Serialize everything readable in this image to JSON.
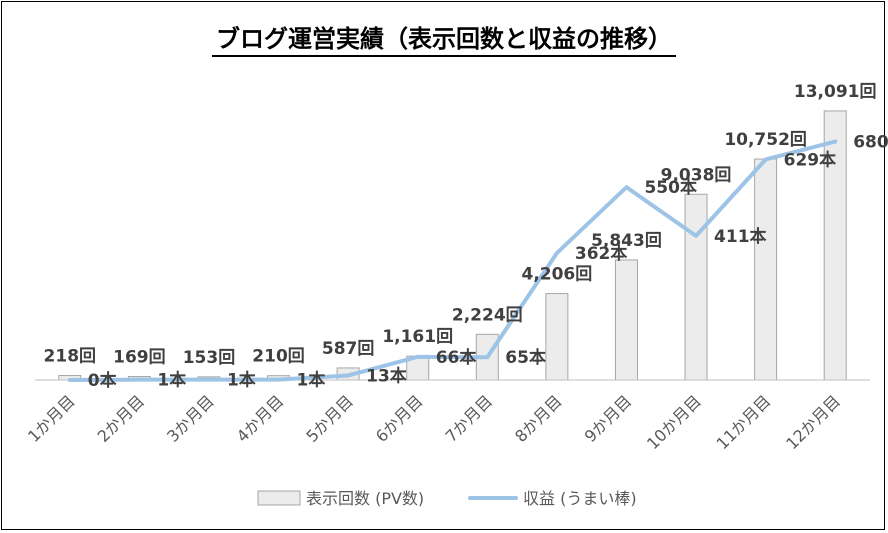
{
  "chart_data": {
    "type": "bar",
    "title": "ブログ運営実績（表示回数と収益の推移）",
    "categories": [
      "1か月目",
      "2か月目",
      "3か月目",
      "4か月目",
      "5か月目",
      "6か月目",
      "7か月目",
      "8か月目",
      "9か月目",
      "10か月目",
      "11か月目",
      "12か月目"
    ],
    "series": [
      {
        "name": "表示回数 (PV数)",
        "kind": "bar",
        "values": [
          218,
          169,
          153,
          210,
          587,
          1161,
          2224,
          4206,
          5843,
          9038,
          10752,
          13091
        ],
        "labels": [
          "218回",
          "169回",
          "153回",
          "210回",
          "587回",
          "1,161回",
          "2,224回",
          "4,206回",
          "5,843回",
          "9,038回",
          "10,752回",
          "13,091回"
        ],
        "color": "#ececec",
        "edge": "#a6a6a6"
      },
      {
        "name": "収益 (うまい棒)",
        "kind": "line",
        "values": [
          0,
          1,
          1,
          1,
          13,
          66,
          65,
          362,
          550,
          411,
          629,
          680
        ],
        "labels": [
          "0本",
          "1本",
          "1本",
          "1本",
          "13本",
          "66本",
          "65本",
          "362本",
          "550本",
          "411本",
          "629本",
          "680本"
        ],
        "color": "#9dc3e6"
      }
    ],
    "ylim_pv": [
      0,
      14500
    ],
    "ylim_rev": [
      0,
      850
    ],
    "legend": "bottom",
    "grid": false
  }
}
